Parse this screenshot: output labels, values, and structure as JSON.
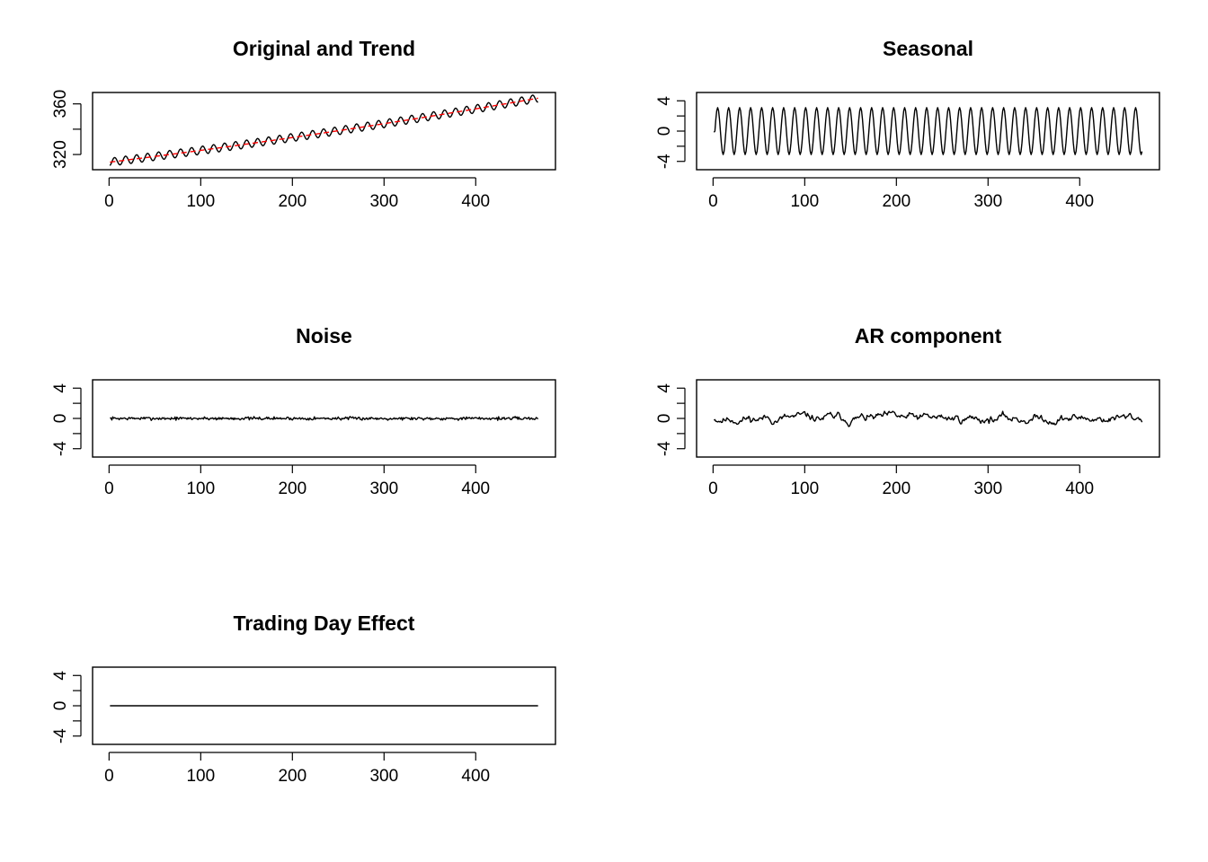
{
  "figure": {
    "background": "#ffffff",
    "line_color": "#000000",
    "trend_color": "#ff0000"
  },
  "chart_data": [
    {
      "type": "line",
      "title": "Original and Trend",
      "xlabel": "",
      "ylabel": "",
      "xlim": [
        -18,
        487
      ],
      "ylim": [
        308,
        369
      ],
      "xticks": [
        0,
        100,
        200,
        300,
        400
      ],
      "yticks": [
        320,
        340,
        360
      ],
      "ytick_labels": [
        "320",
        "",
        "360"
      ],
      "grid": false,
      "series": [
        {
          "role": "original",
          "color": "#000000",
          "generator": {
            "kind": "trend_plus_seasonal",
            "n": 468,
            "start": 314,
            "end": 364.5,
            "curvature": 0.17,
            "amplitude": 3.2,
            "period": 12
          }
        },
        {
          "role": "trend",
          "color": "#ff0000",
          "style": "dashed",
          "generator": {
            "kind": "trend",
            "n": 468,
            "start": 314,
            "end": 364.5,
            "curvature": 0.17
          }
        }
      ]
    },
    {
      "type": "line",
      "title": "Seasonal",
      "xlabel": "",
      "ylabel": "",
      "xlim": [
        -18,
        487
      ],
      "ylim": [
        -5.1,
        5.1
      ],
      "xticks": [
        0,
        100,
        200,
        300,
        400
      ],
      "yticks": [
        -4,
        -2,
        0,
        2,
        4
      ],
      "ytick_labels": [
        "-4",
        "",
        "0",
        "",
        "4"
      ],
      "grid": false,
      "series": [
        {
          "role": "seasonal",
          "color": "#000000",
          "generator": {
            "kind": "seasonal",
            "n": 468,
            "amplitude": 3.1,
            "period": 12
          }
        }
      ]
    },
    {
      "type": "line",
      "title": "Noise",
      "xlabel": "",
      "ylabel": "",
      "xlim": [
        -18,
        487
      ],
      "ylim": [
        -5.1,
        5.1
      ],
      "xticks": [
        0,
        100,
        200,
        300,
        400
      ],
      "yticks": [
        -4,
        -2,
        0,
        2,
        4
      ],
      "ytick_labels": [
        "-4",
        "",
        "0",
        "",
        "4"
      ],
      "grid": false,
      "series": [
        {
          "role": "noise",
          "color": "#000000",
          "generator": {
            "kind": "noise",
            "n": 468,
            "scale": 0.13,
            "seed": 7
          }
        }
      ]
    },
    {
      "type": "line",
      "title": "AR component",
      "xlabel": "",
      "ylabel": "",
      "xlim": [
        -18,
        487
      ],
      "ylim": [
        -5.1,
        5.1
      ],
      "xticks": [
        0,
        100,
        200,
        300,
        400
      ],
      "yticks": [
        -4,
        -2,
        0,
        2,
        4
      ],
      "ytick_labels": [
        "-4",
        "",
        "0",
        "",
        "4"
      ],
      "grid": false,
      "series": [
        {
          "role": "ar",
          "color": "#000000",
          "generator": {
            "kind": "ar",
            "n": 468,
            "phi": 0.86,
            "scale": 0.22,
            "seed": 11
          }
        }
      ]
    },
    {
      "type": "line",
      "title": "Trading Day Effect",
      "xlabel": "",
      "ylabel": "",
      "xlim": [
        -18,
        487
      ],
      "ylim": [
        -5.1,
        5.1
      ],
      "xticks": [
        0,
        100,
        200,
        300,
        400
      ],
      "yticks": [
        -4,
        -2,
        0,
        2,
        4
      ],
      "ytick_labels": [
        "-4",
        "",
        "0",
        "",
        "4"
      ],
      "grid": false,
      "series": [
        {
          "role": "trading-day",
          "color": "#000000",
          "generator": {
            "kind": "constant",
            "n": 468,
            "value": 0
          }
        }
      ]
    }
  ]
}
